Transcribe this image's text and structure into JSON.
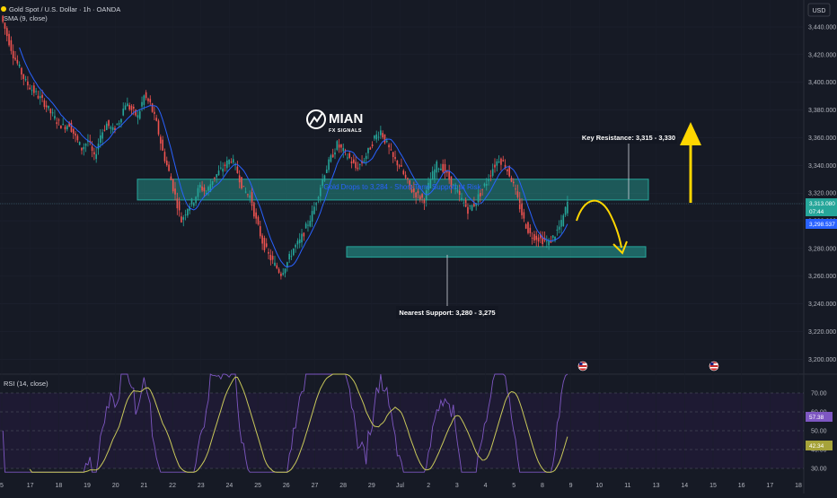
{
  "header": {
    "symbol_title": "Gold Spot / U.S. Dollar · 1h · OANDA",
    "sma_legend": "SMA (9, close)",
    "currency": "USD"
  },
  "logo": {
    "name": "MIAN",
    "tagline": "FX SIGNALS"
  },
  "annotations": {
    "key_resistance": "Key Resistance: 3,315 - 3,330",
    "nearest_support": "Nearest Support: 3,280 - 3,275",
    "zone_text": "Gold Drops to 3,284 - Short-Term Support at Risk"
  },
  "price_tags": {
    "current_price": "3,313.080",
    "countdown": "07:44",
    "sma_value": "3,298.537"
  },
  "rsi": {
    "legend": "RSI (14, close)",
    "ticks": [
      "70.00",
      "60.00",
      "50.00",
      "40.00",
      "30.00"
    ],
    "rsi_value": "57.38",
    "ma_value": "42.34"
  },
  "colors": {
    "background": "#161a25",
    "bull": "#26a69a",
    "bear": "#ef5350",
    "sma": "#2962ff",
    "zone": "#26a69a",
    "arrow": "#ffd600",
    "rsi_line": "#7e57c2",
    "rsi_ma": "#c9c85a"
  },
  "chart_data": {
    "type": "candlestick",
    "title": "Gold Spot / U.S. Dollar · 1h · OANDA",
    "y_axis": {
      "ticks": [
        "3,440.000",
        "3,420.000",
        "3,400.000",
        "3,380.000",
        "3,360.000",
        "3,340.000",
        "3,320.000",
        "3,300.000",
        "3,280.000",
        "3,260.000",
        "3,240.000",
        "3,220.000",
        "3,200.000"
      ],
      "range": [
        3190,
        3455
      ]
    },
    "x_axis": {
      "ticks": [
        "5",
        "17",
        "18",
        "19",
        "20",
        "21",
        "22",
        "23",
        "24",
        "25",
        "26",
        "27",
        "28",
        "29",
        "Jul",
        "2",
        "3",
        "4",
        "5",
        "8",
        "9",
        "10",
        "11",
        "13",
        "14",
        "15",
        "16",
        "17",
        "18"
      ]
    },
    "price_path": [
      3448,
      3434,
      3420,
      3410,
      3400,
      3395,
      3390,
      3385,
      3378,
      3372,
      3368,
      3370,
      3360,
      3352,
      3358,
      3345,
      3362,
      3370,
      3365,
      3372,
      3385,
      3380,
      3375,
      3390,
      3384,
      3370,
      3350,
      3335,
      3318,
      3300,
      3310,
      3315,
      3325,
      3320,
      3330,
      3335,
      3340,
      3345,
      3335,
      3322,
      3318,
      3300,
      3285,
      3275,
      3268,
      3262,
      3270,
      3280,
      3285,
      3295,
      3305,
      3320,
      3335,
      3345,
      3355,
      3350,
      3345,
      3338,
      3342,
      3350,
      3360,
      3365,
      3355,
      3345,
      3340,
      3330,
      3322,
      3318,
      3315,
      3330,
      3340,
      3338,
      3330,
      3322,
      3315,
      3308,
      3312,
      3320,
      3328,
      3338,
      3345,
      3340,
      3330,
      3315,
      3300,
      3290,
      3288,
      3286,
      3284,
      3290,
      3298,
      3313
    ],
    "supply_zone": [
      3315,
      3330
    ],
    "demand_zone": [
      3275,
      3280
    ],
    "sma_period": 9
  }
}
